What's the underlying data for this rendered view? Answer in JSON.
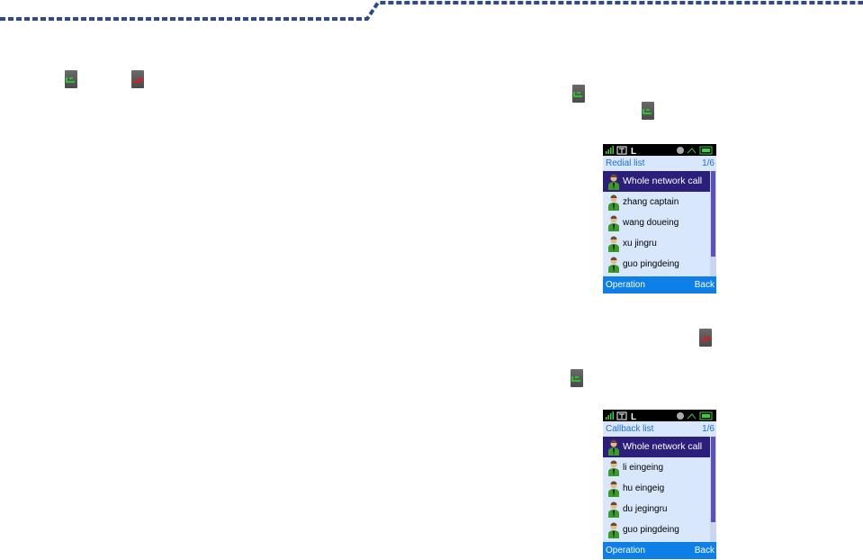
{
  "colors": {
    "rule": "#2b4a93",
    "call_key": "#22e022",
    "end_key": "#e01818",
    "list_bg": "#d8e7fb",
    "selected": "#2c1f7c",
    "softkey_bar": "#0d7fe6",
    "title_text": "#1a6ed8"
  },
  "icons": {
    "call": "call-key-icon",
    "end": "end-key-icon",
    "contact": "person-icon"
  },
  "screens": [
    {
      "title": "Redial list",
      "page": "1/6",
      "items": [
        "Whole network call",
        "zhang captain",
        "wang doueing",
        "xu jingru",
        "guo pingdeing"
      ],
      "selected": 0,
      "left_soft": "Operation",
      "right_soft": "Back"
    },
    {
      "title": "Callback list",
      "page": "1/6",
      "items": [
        "Whole network call",
        "li eingeing",
        "hu eingeig",
        "du jegingru",
        "guo pingdeing"
      ],
      "selected": 0,
      "left_soft": "Operation",
      "right_soft": "Back"
    }
  ]
}
